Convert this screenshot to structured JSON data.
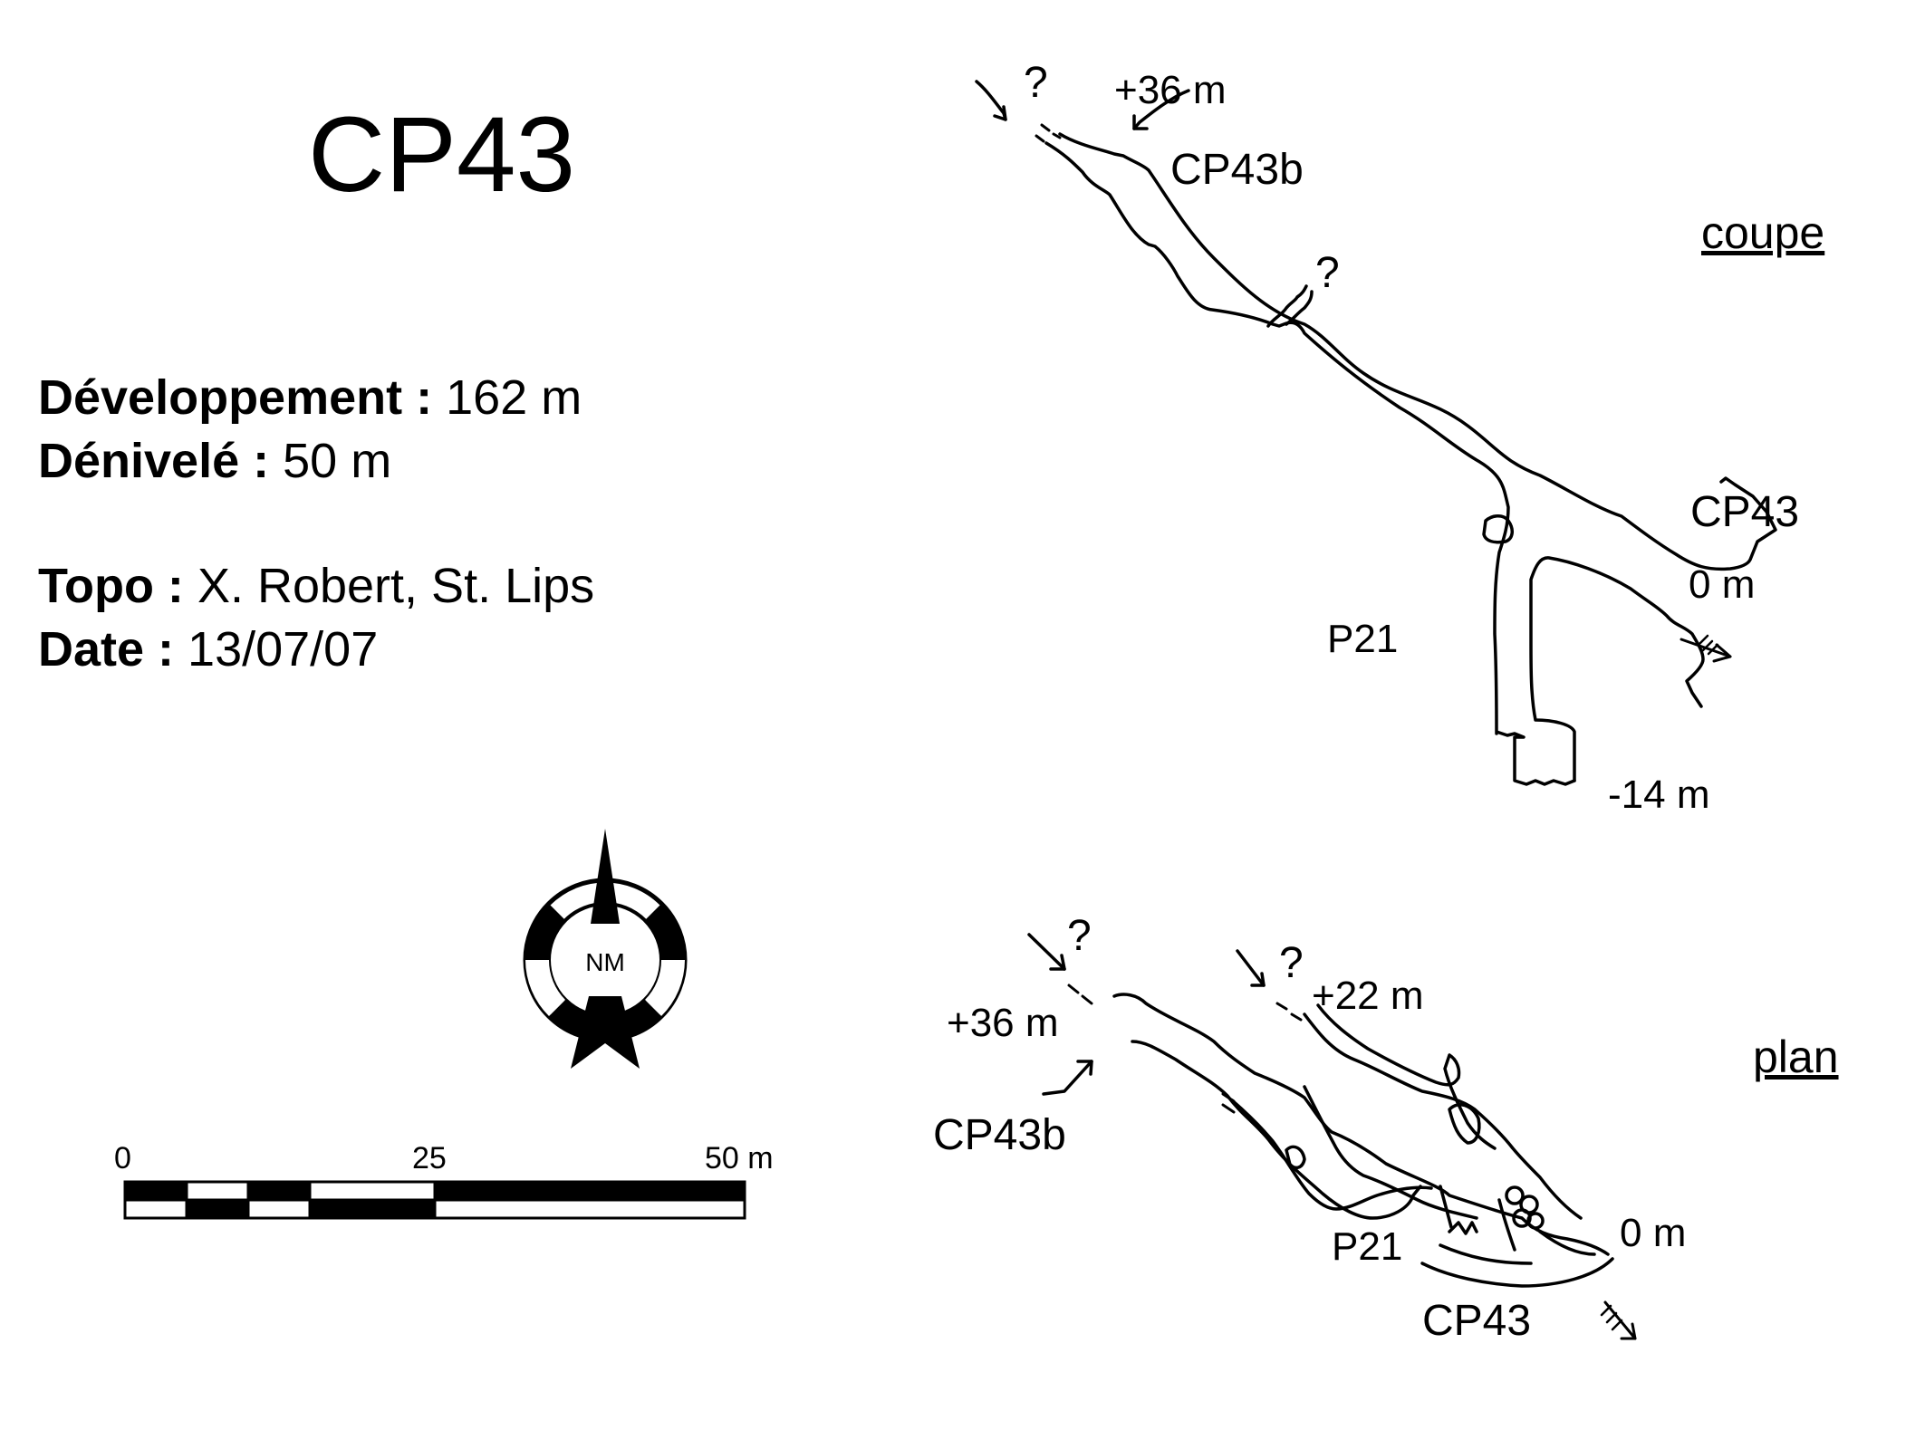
{
  "title": "CP43",
  "info": {
    "developpement_label": "Développement :",
    "developpement_value": "162 m",
    "denivele_label": "Dénivelé :",
    "denivele_value": "50 m",
    "topo_label": "Topo :",
    "topo_value": "X. Robert,  St. Lips",
    "date_label": "Date :",
    "date_value": "13/07/07"
  },
  "north_arrow": {
    "label": "NM",
    "icon": "north-arrow-icon"
  },
  "scale_bar": {
    "tick_0": "0",
    "tick_25": "25",
    "tick_50": "50 m"
  },
  "coupe": {
    "view_label": "coupe",
    "q1": "?",
    "q2": "?",
    "elev_top": "+36 m",
    "entrance_b": "CP43b",
    "entrance_main": "CP43",
    "elev_zero": "0 m",
    "pit": "P21",
    "elev_bottom": "-14 m"
  },
  "plan": {
    "view_label": "plan",
    "q1": "?",
    "q2": "?",
    "elev_left": "+36 m",
    "elev_mid": "+22 m",
    "entrance_b": "CP43b",
    "pit": "P21",
    "elev_zero": "0 m",
    "entrance_main": "CP43"
  }
}
